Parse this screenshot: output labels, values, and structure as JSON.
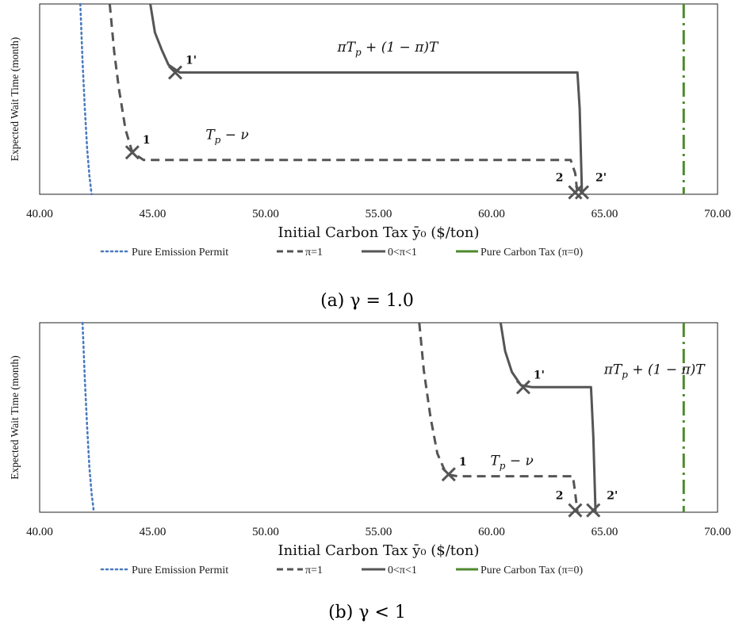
{
  "chart_data": [
    {
      "type": "line",
      "caption": "(a) γ = 1.0",
      "xlabel": "Initial Carbon Tax ȳ₀ ($/ton)",
      "ylabel": "Expected Wait Time (month)",
      "xlim": [
        40,
        70
      ],
      "x_ticks": [
        "40.00",
        "45.00",
        "50.00",
        "55.00",
        "60.00",
        "65.00",
        "70.00"
      ],
      "ylim": [
        0,
        10
      ],
      "legend_position": "bottom",
      "legend": [
        "Pure Emission Permit",
        "π=1",
        "0<π<1",
        "Pure Carbon Tax (π=0)"
      ],
      "series": [
        {
          "name": "Pure Emission Permit",
          "style": "dotted",
          "color": "#4a7ac0",
          "points": [
            [
              41.8,
              10
            ],
            [
              41.9,
              7
            ],
            [
              42.0,
              4.5
            ],
            [
              42.1,
              2.4
            ],
            [
              42.2,
              1.0
            ],
            [
              42.3,
              0
            ]
          ]
        },
        {
          "name": "π=1",
          "style": "dashed",
          "color": "#555555",
          "points": [
            [
              43.1,
              10
            ],
            [
              43.3,
              7.5
            ],
            [
              43.5,
              5.6
            ],
            [
              43.8,
              3.4
            ],
            [
              44.1,
              2.2
            ],
            [
              44.6,
              1.8
            ],
            [
              63.5,
              1.8
            ],
            [
              63.7,
              1.1
            ],
            [
              63.8,
              0
            ]
          ]
        },
        {
          "name": "0<π<1",
          "style": "solid",
          "color": "#555555",
          "points": [
            [
              44.9,
              10
            ],
            [
              45.1,
              8.5
            ],
            [
              45.4,
              7.6
            ],
            [
              45.7,
              6.8
            ],
            [
              46.2,
              6.4
            ],
            [
              63.8,
              6.4
            ],
            [
              63.9,
              4.5
            ],
            [
              64.0,
              0
            ]
          ]
        },
        {
          "name": "Pure Carbon Tax (π=0)",
          "style": "dashdot",
          "color": "#4e8a2e",
          "points": [
            [
              68.5,
              10
            ],
            [
              68.5,
              0
            ]
          ]
        }
      ],
      "markers": [
        {
          "label": "1",
          "x": 44.1,
          "y": 2.2
        },
        {
          "label": "1'",
          "x": 46.0,
          "y": 6.4
        },
        {
          "label": "2",
          "x": 63.7,
          "y": 0.1
        },
        {
          "label": "2'",
          "x": 64.0,
          "y": 0.1
        }
      ],
      "annotations": [
        {
          "text": "πT_p + (1 − π)T",
          "x": 55.4,
          "y": 7.5
        },
        {
          "text": "T_p − ν",
          "x": 48.3,
          "y": 2.9
        }
      ]
    },
    {
      "type": "line",
      "caption": "(b) γ < 1",
      "xlabel": "Initial Carbon Tax ȳ₀ ($/ton)",
      "ylabel": "Expected Wait Time (month)",
      "xlim": [
        40,
        70
      ],
      "x_ticks": [
        "40.00",
        "45.00",
        "50.00",
        "55.00",
        "60.00",
        "65.00",
        "70.00"
      ],
      "ylim": [
        0,
        10
      ],
      "legend_position": "bottom",
      "legend": [
        "Pure Emission Permit",
        "π=1",
        "0<π<1",
        "Pure Carbon Tax (π=0)"
      ],
      "series": [
        {
          "name": "Pure Emission Permit",
          "style": "dotted",
          "color": "#4a7ac0",
          "points": [
            [
              41.9,
              10
            ],
            [
              42.0,
              7
            ],
            [
              42.1,
              4.5
            ],
            [
              42.2,
              2.4
            ],
            [
              42.3,
              1.0
            ],
            [
              42.4,
              0
            ]
          ]
        },
        {
          "name": "π=1",
          "style": "dashed",
          "color": "#555555",
          "points": [
            [
              56.8,
              10
            ],
            [
              57.0,
              7.5
            ],
            [
              57.3,
              5.0
            ],
            [
              57.6,
              3.1
            ],
            [
              58.0,
              2.0
            ],
            [
              58.5,
              1.9
            ],
            [
              63.6,
              1.9
            ],
            [
              63.7,
              1.0
            ],
            [
              63.8,
              0
            ]
          ]
        },
        {
          "name": "0<π<1",
          "style": "solid",
          "color": "#555555",
          "points": [
            [
              60.4,
              10
            ],
            [
              60.6,
              8.5
            ],
            [
              60.9,
              7.4
            ],
            [
              61.3,
              6.7
            ],
            [
              61.8,
              6.6
            ],
            [
              64.4,
              6.6
            ],
            [
              64.5,
              4.0
            ],
            [
              64.6,
              0
            ]
          ]
        },
        {
          "name": "Pure Carbon Tax (π=0)",
          "style": "dashdot",
          "color": "#4e8a2e",
          "points": [
            [
              68.5,
              10
            ],
            [
              68.5,
              0
            ]
          ]
        }
      ],
      "markers": [
        {
          "label": "1",
          "x": 58.1,
          "y": 2.0
        },
        {
          "label": "1'",
          "x": 61.4,
          "y": 6.6
        },
        {
          "label": "2",
          "x": 63.7,
          "y": 0.1
        },
        {
          "label": "2'",
          "x": 64.5,
          "y": 0.1
        }
      ],
      "annotations": [
        {
          "text": "πT_p + (1 − π)T",
          "x": 67.2,
          "y": 7.3
        },
        {
          "text": "T_p − ν",
          "x": 60.9,
          "y": 2.5
        }
      ]
    }
  ]
}
